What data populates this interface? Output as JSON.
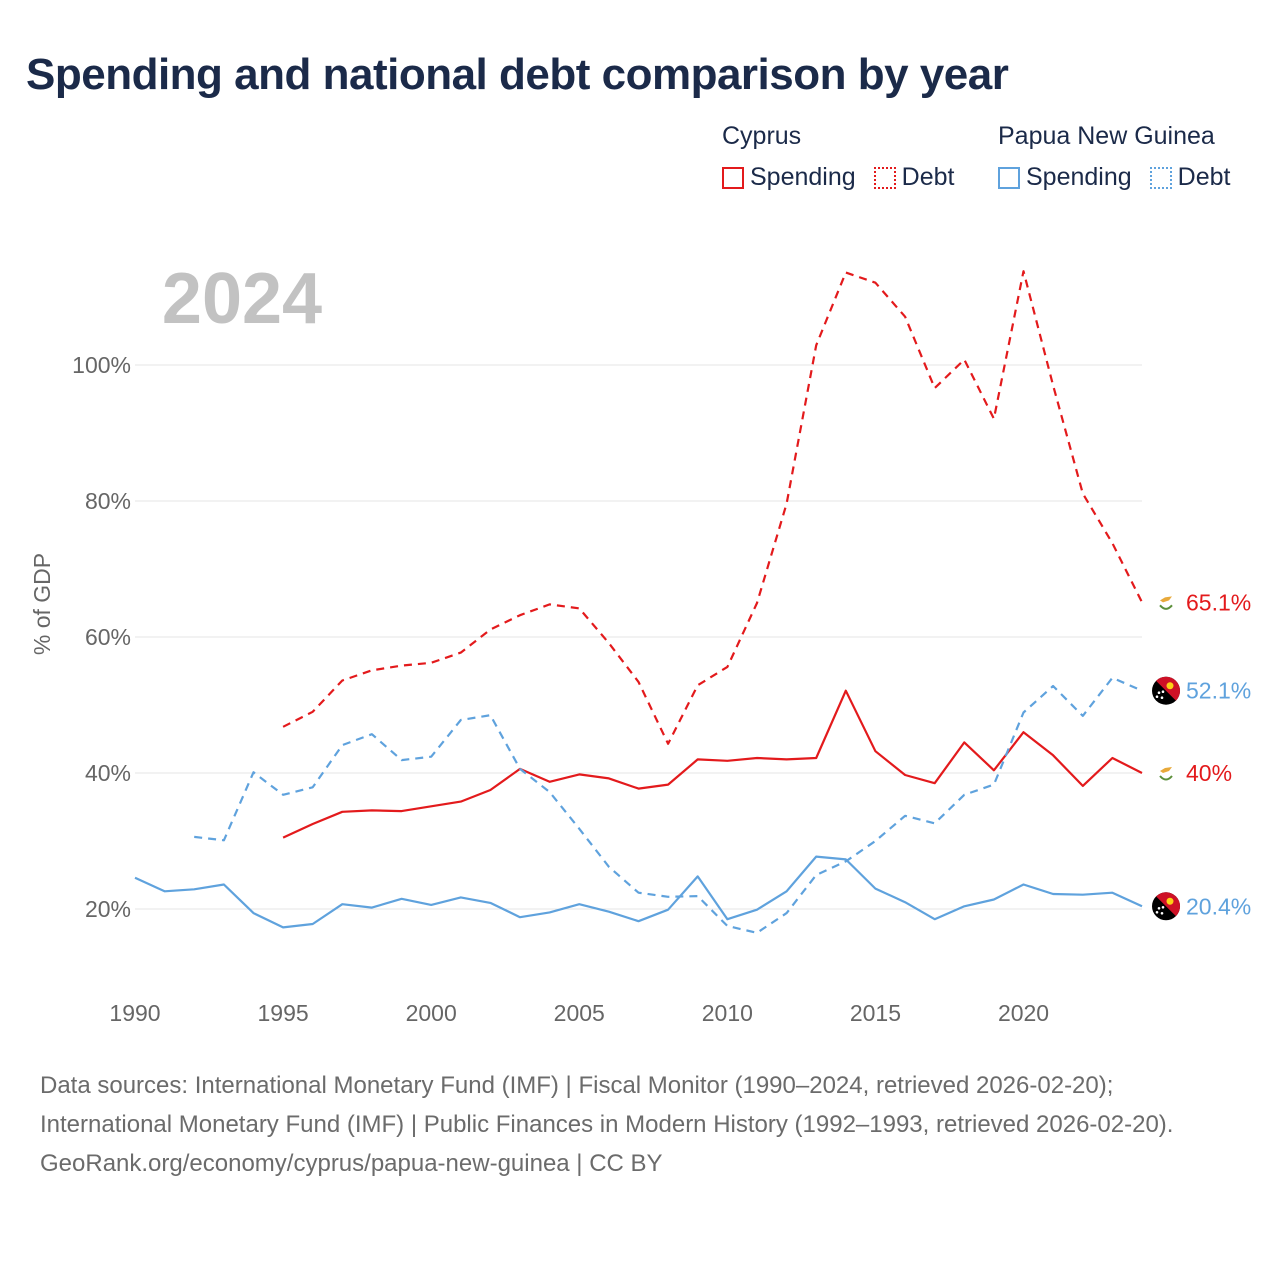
{
  "title": "Spending and national debt comparison by year",
  "legend": {
    "groups": [
      {
        "country": "Cyprus",
        "items": [
          {
            "label": "Spending",
            "style": "solid",
            "color": "#e31a1c"
          },
          {
            "label": "Debt",
            "style": "dotted",
            "color": "#e31a1c"
          }
        ]
      },
      {
        "country": "Papua New Guinea",
        "items": [
          {
            "label": "Spending",
            "style": "solid",
            "color": "#5fa2dd"
          },
          {
            "label": "Debt",
            "style": "dotted",
            "color": "#5fa2dd"
          }
        ]
      }
    ]
  },
  "chart_data": {
    "type": "line",
    "year_label": "2024",
    "ylabel": "% of GDP",
    "xlim": [
      1990,
      2024
    ],
    "ylim": [
      10,
      115
    ],
    "x_ticks": [
      1990,
      1995,
      2000,
      2005,
      2010,
      2015,
      2020
    ],
    "x_tick_labels": [
      "1990",
      "1995",
      "2000",
      "2005",
      "2010",
      "2015",
      "2020"
    ],
    "y_ticks": [
      20,
      40,
      60,
      80,
      100
    ],
    "y_tick_labels": [
      "20%",
      "40%",
      "60%",
      "80%",
      "100%"
    ],
    "series": [
      {
        "name": "Cyprus Debt",
        "country": "Cyprus",
        "metric": "Debt",
        "color": "#e31a1c",
        "dash": "dashed",
        "start_year": 1995,
        "values": [
          46.8,
          49.0,
          53.6,
          55.1,
          55.8,
          56.2,
          57.7,
          61.1,
          63.2,
          64.8,
          64.2,
          59.1,
          53.4,
          44.3,
          52.9,
          55.6,
          65.0,
          79.6,
          102.9,
          113.6,
          112.1,
          107.1,
          96.6,
          100.8,
          92.1,
          113.8,
          97.0,
          81.1,
          73.8,
          65.1
        ],
        "end_label": "65.1%"
      },
      {
        "name": "Cyprus Spending",
        "country": "Cyprus",
        "metric": "Spending",
        "color": "#e31a1c",
        "dash": "solid",
        "start_year": 1995,
        "values": [
          30.5,
          32.5,
          34.3,
          34.5,
          34.4,
          35.1,
          35.8,
          37.5,
          40.6,
          38.7,
          39.8,
          39.2,
          37.7,
          38.3,
          42.0,
          41.8,
          42.2,
          42.0,
          42.2,
          52.1,
          43.2,
          39.7,
          38.5,
          44.5,
          40.4,
          46.0,
          42.6,
          38.1,
          42.2,
          40.0
        ],
        "end_label": "40%"
      },
      {
        "name": "Papua New Guinea Debt",
        "country": "Papua New Guinea",
        "metric": "Debt",
        "color": "#5fa2dd",
        "dash": "dashed",
        "start_year": 1992,
        "values": [
          30.6,
          30.1,
          40.1,
          36.8,
          37.9,
          44.1,
          45.7,
          41.9,
          42.4,
          47.8,
          48.5,
          40.6,
          37.2,
          31.8,
          26.2,
          22.4,
          21.8,
          21.9,
          17.5,
          16.5,
          19.4,
          25.0,
          27.0,
          30.0,
          33.7,
          32.6,
          36.8,
          38.3,
          48.9,
          52.8,
          48.4,
          54.0,
          52.1
        ],
        "end_label": "52.1%"
      },
      {
        "name": "Papua New Guinea Spending",
        "country": "Papua New Guinea",
        "metric": "Spending",
        "color": "#5fa2dd",
        "dash": "solid",
        "start_year": 1990,
        "values": [
          24.6,
          22.6,
          22.9,
          23.6,
          19.4,
          17.3,
          17.8,
          20.7,
          20.2,
          21.5,
          20.6,
          21.7,
          20.9,
          18.8,
          19.5,
          20.7,
          19.6,
          18.2,
          19.9,
          24.8,
          18.5,
          19.9,
          22.6,
          27.7,
          27.3,
          23.0,
          21.0,
          18.5,
          20.4,
          21.4,
          23.6,
          22.2,
          22.1,
          22.4,
          20.4
        ],
        "end_label": "20.4%"
      }
    ]
  },
  "footer": {
    "sources": "Data sources: International Monetary Fund (IMF) | Fiscal Monitor (1990–2024, retrieved 2026-02-20); International Monetary Fund (IMF) | Public Finances in Modern History (1992–1993, retrieved 2026-02-20).",
    "credit": "GeoRank.org/economy/cyprus/papua-new-guinea | CC BY"
  }
}
